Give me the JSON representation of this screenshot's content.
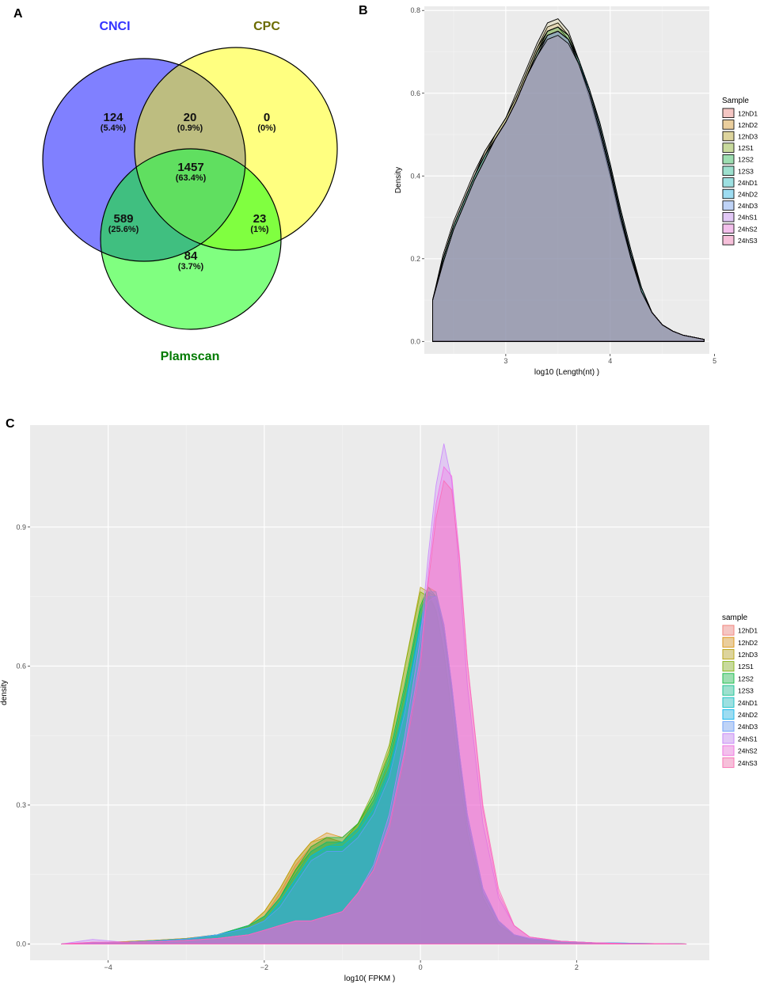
{
  "panels": {
    "a": "A",
    "b": "B",
    "c": "C"
  },
  "chart_data": [
    {
      "type": "venn",
      "sets": [
        {
          "name": "CNCI",
          "color": "#3333ff"
        },
        {
          "name": "CPC",
          "color": "#6b6b00"
        },
        {
          "name": "Plamscan",
          "color": "#007a00"
        }
      ],
      "regions": [
        {
          "sets": [
            "CNCI"
          ],
          "count": "124",
          "pct": "(5.4%)"
        },
        {
          "sets": [
            "CNCI",
            "CPC"
          ],
          "count": "20",
          "pct": "(0.9%)"
        },
        {
          "sets": [
            "CPC"
          ],
          "count": "0",
          "pct": "(0%)"
        },
        {
          "sets": [
            "CNCI",
            "CPC",
            "Plamscan"
          ],
          "count": "1457",
          "pct": "(63.4%)"
        },
        {
          "sets": [
            "CNCI",
            "Plamscan"
          ],
          "count": "589",
          "pct": "(25.6%)"
        },
        {
          "sets": [
            "CPC",
            "Plamscan"
          ],
          "count": "23",
          "pct": "(1%)"
        },
        {
          "sets": [
            "Plamscan"
          ],
          "count": "84",
          "pct": "(3.7%)"
        }
      ],
      "fill_colors": {
        "CNCI": "#8080ff",
        "CPC": "#ffff80",
        "Plamscan": "#80ff80"
      }
    },
    {
      "type": "area",
      "xlabel": "log10 (Length(nt) )",
      "ylabel": "Density",
      "xlim": [
        2.22,
        4.95
      ],
      "ylim": [
        -0.03,
        0.81
      ],
      "xticks": [
        3,
        4,
        5
      ],
      "yticks": [
        0.0,
        0.2,
        0.4,
        0.6,
        0.8
      ],
      "xtick_labels": [
        "3",
        "4",
        "5"
      ],
      "ytick_labels": [
        "0.0",
        "0.2",
        "0.4",
        "0.6",
        "0.8"
      ],
      "legend_title": "Sample",
      "legend_position": "right",
      "x": [
        2.3,
        2.4,
        2.5,
        2.6,
        2.7,
        2.8,
        2.9,
        3.0,
        3.1,
        3.2,
        3.3,
        3.4,
        3.5,
        3.6,
        3.7,
        3.8,
        3.9,
        4.0,
        4.1,
        4.2,
        4.3,
        4.4,
        4.5,
        4.6,
        4.7,
        4.8,
        4.9
      ],
      "series": [
        {
          "name": "12hD1",
          "color": "#F8766D",
          "values": [
            0.1,
            0.2,
            0.28,
            0.34,
            0.4,
            0.45,
            0.49,
            0.53,
            0.58,
            0.64,
            0.7,
            0.75,
            0.76,
            0.73,
            0.67,
            0.59,
            0.5,
            0.4,
            0.29,
            0.2,
            0.12,
            0.07,
            0.04,
            0.025,
            0.015,
            0.01,
            0.005
          ]
        },
        {
          "name": "12hD2",
          "color": "#DE8C00",
          "values": [
            0.1,
            0.21,
            0.29,
            0.35,
            0.41,
            0.46,
            0.5,
            0.54,
            0.59,
            0.65,
            0.71,
            0.76,
            0.77,
            0.74,
            0.68,
            0.6,
            0.5,
            0.4,
            0.29,
            0.2,
            0.12,
            0.07,
            0.04,
            0.025,
            0.015,
            0.01,
            0.005
          ]
        },
        {
          "name": "12hD3",
          "color": "#B79F00",
          "values": [
            0.1,
            0.2,
            0.28,
            0.34,
            0.4,
            0.46,
            0.5,
            0.54,
            0.6,
            0.66,
            0.72,
            0.77,
            0.78,
            0.75,
            0.68,
            0.6,
            0.51,
            0.41,
            0.3,
            0.2,
            0.12,
            0.07,
            0.04,
            0.025,
            0.015,
            0.01,
            0.005
          ]
        },
        {
          "name": "12S1",
          "color": "#7CAE00",
          "values": [
            0.1,
            0.2,
            0.28,
            0.34,
            0.4,
            0.45,
            0.5,
            0.54,
            0.59,
            0.65,
            0.71,
            0.75,
            0.76,
            0.74,
            0.68,
            0.6,
            0.51,
            0.41,
            0.3,
            0.21,
            0.13,
            0.07,
            0.04,
            0.025,
            0.015,
            0.01,
            0.005
          ]
        },
        {
          "name": "12S2",
          "color": "#00BA38",
          "values": [
            0.1,
            0.2,
            0.28,
            0.34,
            0.4,
            0.45,
            0.49,
            0.53,
            0.58,
            0.64,
            0.7,
            0.75,
            0.76,
            0.74,
            0.68,
            0.6,
            0.51,
            0.41,
            0.3,
            0.21,
            0.13,
            0.07,
            0.04,
            0.025,
            0.015,
            0.01,
            0.005
          ]
        },
        {
          "name": "12S3",
          "color": "#00C08B",
          "values": [
            0.1,
            0.2,
            0.28,
            0.34,
            0.4,
            0.45,
            0.49,
            0.53,
            0.58,
            0.64,
            0.7,
            0.75,
            0.76,
            0.74,
            0.68,
            0.61,
            0.52,
            0.42,
            0.31,
            0.21,
            0.13,
            0.07,
            0.04,
            0.025,
            0.015,
            0.01,
            0.005
          ]
        },
        {
          "name": "24hD1",
          "color": "#00BFC4",
          "values": [
            0.1,
            0.2,
            0.28,
            0.34,
            0.4,
            0.45,
            0.49,
            0.53,
            0.58,
            0.64,
            0.7,
            0.74,
            0.75,
            0.73,
            0.68,
            0.61,
            0.53,
            0.43,
            0.32,
            0.22,
            0.13,
            0.07,
            0.04,
            0.025,
            0.015,
            0.01,
            0.005
          ]
        },
        {
          "name": "24hD2",
          "color": "#00B4F0",
          "values": [
            0.1,
            0.2,
            0.28,
            0.34,
            0.4,
            0.45,
            0.49,
            0.53,
            0.58,
            0.64,
            0.69,
            0.74,
            0.75,
            0.73,
            0.68,
            0.61,
            0.53,
            0.43,
            0.32,
            0.22,
            0.13,
            0.07,
            0.04,
            0.025,
            0.015,
            0.01,
            0.005
          ]
        },
        {
          "name": "24hD3",
          "color": "#619CFF",
          "values": [
            0.1,
            0.2,
            0.28,
            0.34,
            0.4,
            0.45,
            0.49,
            0.53,
            0.58,
            0.64,
            0.69,
            0.74,
            0.75,
            0.73,
            0.68,
            0.61,
            0.52,
            0.42,
            0.31,
            0.21,
            0.13,
            0.07,
            0.04,
            0.025,
            0.015,
            0.01,
            0.005
          ]
        },
        {
          "name": "24hS1",
          "color": "#C77CFF",
          "values": [
            0.1,
            0.19,
            0.27,
            0.33,
            0.39,
            0.44,
            0.49,
            0.53,
            0.58,
            0.64,
            0.7,
            0.74,
            0.75,
            0.73,
            0.67,
            0.6,
            0.51,
            0.41,
            0.3,
            0.21,
            0.12,
            0.07,
            0.04,
            0.025,
            0.015,
            0.01,
            0.005
          ]
        },
        {
          "name": "24hS2",
          "color": "#F564E3",
          "values": [
            0.1,
            0.19,
            0.27,
            0.33,
            0.39,
            0.44,
            0.49,
            0.53,
            0.58,
            0.64,
            0.69,
            0.74,
            0.75,
            0.73,
            0.67,
            0.6,
            0.51,
            0.41,
            0.3,
            0.2,
            0.12,
            0.07,
            0.04,
            0.025,
            0.015,
            0.01,
            0.005
          ]
        },
        {
          "name": "24hS3",
          "color": "#FF64B0",
          "values": [
            0.1,
            0.19,
            0.27,
            0.33,
            0.39,
            0.44,
            0.49,
            0.53,
            0.58,
            0.64,
            0.69,
            0.73,
            0.74,
            0.72,
            0.67,
            0.6,
            0.51,
            0.41,
            0.3,
            0.2,
            0.12,
            0.07,
            0.04,
            0.025,
            0.015,
            0.01,
            0.005
          ]
        }
      ]
    },
    {
      "type": "area",
      "xlabel": "log10( FPKM )",
      "ylabel": "density",
      "xlim": [
        -5.0,
        3.7
      ],
      "ylim": [
        -0.035,
        1.12
      ],
      "xticks": [
        -4,
        -2,
        0,
        2
      ],
      "yticks": [
        0.0,
        0.3,
        0.6,
        0.9
      ],
      "xtick_labels": [
        "−4",
        "−2",
        "0",
        "2"
      ],
      "ytick_labels": [
        "0.0",
        "0.3",
        "0.6",
        "0.9"
      ],
      "legend_title": "sample",
      "legend_position": "right",
      "x": [
        -4.6,
        -4.2,
        -3.8,
        -3.4,
        -3.0,
        -2.6,
        -2.2,
        -2.0,
        -1.8,
        -1.6,
        -1.4,
        -1.2,
        -1.0,
        -0.8,
        -0.6,
        -0.4,
        -0.2,
        0.0,
        0.1,
        0.2,
        0.3,
        0.4,
        0.5,
        0.6,
        0.8,
        1.0,
        1.2,
        1.4,
        1.8,
        2.2,
        2.6,
        3.0,
        3.4
      ],
      "series": [
        {
          "name": "12hD1",
          "color": "#F8766D",
          "values": [
            0.0,
            0.002,
            0.005,
            0.008,
            0.012,
            0.02,
            0.04,
            0.06,
            0.11,
            0.17,
            0.21,
            0.23,
            0.22,
            0.25,
            0.3,
            0.38,
            0.52,
            0.7,
            0.76,
            0.75,
            0.68,
            0.55,
            0.4,
            0.27,
            0.12,
            0.05,
            0.02,
            0.01,
            0.004,
            0.002,
            0.001,
            0.001,
            0.0
          ]
        },
        {
          "name": "12hD2",
          "color": "#DE8C00",
          "values": [
            0.0,
            0.002,
            0.005,
            0.008,
            0.012,
            0.02,
            0.04,
            0.07,
            0.12,
            0.18,
            0.22,
            0.24,
            0.23,
            0.26,
            0.31,
            0.39,
            0.54,
            0.72,
            0.77,
            0.76,
            0.68,
            0.55,
            0.4,
            0.26,
            0.11,
            0.05,
            0.02,
            0.01,
            0.004,
            0.002,
            0.001,
            0.001,
            0.0
          ]
        },
        {
          "name": "12hD3",
          "color": "#B79F00",
          "values": [
            0.0,
            0.002,
            0.005,
            0.008,
            0.012,
            0.02,
            0.04,
            0.07,
            0.12,
            0.18,
            0.22,
            0.23,
            0.22,
            0.26,
            0.32,
            0.42,
            0.6,
            0.77,
            0.76,
            0.72,
            0.63,
            0.5,
            0.36,
            0.24,
            0.1,
            0.04,
            0.02,
            0.01,
            0.004,
            0.002,
            0.001,
            0.001,
            0.0
          ]
        },
        {
          "name": "12S1",
          "color": "#7CAE00",
          "values": [
            0.0,
            0.002,
            0.004,
            0.007,
            0.011,
            0.02,
            0.04,
            0.06,
            0.1,
            0.16,
            0.2,
            0.22,
            0.22,
            0.26,
            0.33,
            0.43,
            0.6,
            0.76,
            0.75,
            0.72,
            0.63,
            0.5,
            0.36,
            0.24,
            0.1,
            0.04,
            0.02,
            0.01,
            0.004,
            0.002,
            0.001,
            0.001,
            0.0
          ]
        },
        {
          "name": "12S2",
          "color": "#00BA38",
          "values": [
            0.0,
            0.002,
            0.004,
            0.007,
            0.011,
            0.02,
            0.04,
            0.06,
            0.1,
            0.16,
            0.21,
            0.23,
            0.23,
            0.26,
            0.32,
            0.41,
            0.56,
            0.73,
            0.77,
            0.75,
            0.67,
            0.54,
            0.39,
            0.26,
            0.11,
            0.05,
            0.02,
            0.01,
            0.004,
            0.002,
            0.001,
            0.001,
            0.0
          ]
        },
        {
          "name": "12S3",
          "color": "#00C08B",
          "values": [
            0.0,
            0.002,
            0.004,
            0.007,
            0.011,
            0.02,
            0.04,
            0.06,
            0.1,
            0.15,
            0.2,
            0.22,
            0.22,
            0.25,
            0.31,
            0.4,
            0.55,
            0.72,
            0.76,
            0.75,
            0.67,
            0.54,
            0.39,
            0.26,
            0.11,
            0.05,
            0.02,
            0.01,
            0.004,
            0.002,
            0.001,
            0.001,
            0.0
          ]
        },
        {
          "name": "24hD1",
          "color": "#00BFC4",
          "values": [
            0.0,
            0.002,
            0.004,
            0.007,
            0.011,
            0.02,
            0.035,
            0.05,
            0.09,
            0.14,
            0.19,
            0.21,
            0.22,
            0.25,
            0.3,
            0.38,
            0.52,
            0.7,
            0.76,
            0.76,
            0.69,
            0.56,
            0.41,
            0.28,
            0.12,
            0.05,
            0.02,
            0.012,
            0.006,
            0.003,
            0.002,
            0.001,
            0.0
          ]
        },
        {
          "name": "24hD2",
          "color": "#00B4F0",
          "values": [
            0.0,
            0.002,
            0.004,
            0.007,
            0.011,
            0.02,
            0.035,
            0.05,
            0.09,
            0.14,
            0.19,
            0.21,
            0.21,
            0.24,
            0.29,
            0.37,
            0.51,
            0.69,
            0.75,
            0.75,
            0.69,
            0.56,
            0.41,
            0.28,
            0.12,
            0.05,
            0.02,
            0.012,
            0.006,
            0.003,
            0.002,
            0.001,
            0.0
          ]
        },
        {
          "name": "24hD3",
          "color": "#619CFF",
          "values": [
            0.0,
            0.002,
            0.004,
            0.007,
            0.011,
            0.02,
            0.035,
            0.05,
            0.08,
            0.13,
            0.18,
            0.2,
            0.2,
            0.23,
            0.28,
            0.36,
            0.5,
            0.68,
            0.74,
            0.75,
            0.69,
            0.56,
            0.41,
            0.28,
            0.12,
            0.05,
            0.02,
            0.012,
            0.006,
            0.003,
            0.002,
            0.001,
            0.0
          ]
        },
        {
          "name": "24hS1",
          "color": "#C77CFF",
          "values": [
            0.0,
            0.01,
            0.004,
            0.005,
            0.008,
            0.012,
            0.02,
            0.03,
            0.04,
            0.05,
            0.05,
            0.06,
            0.07,
            0.11,
            0.17,
            0.28,
            0.45,
            0.66,
            0.84,
            0.99,
            1.08,
            1.0,
            0.8,
            0.56,
            0.26,
            0.1,
            0.04,
            0.015,
            0.006,
            0.003,
            0.001,
            0.001,
            0.0
          ]
        },
        {
          "name": "24hS2",
          "color": "#F564E3",
          "values": [
            0.0,
            0.004,
            0.004,
            0.005,
            0.008,
            0.012,
            0.02,
            0.03,
            0.04,
            0.05,
            0.05,
            0.06,
            0.07,
            0.11,
            0.16,
            0.26,
            0.42,
            0.62,
            0.8,
            0.95,
            1.03,
            1.01,
            0.84,
            0.61,
            0.29,
            0.11,
            0.04,
            0.015,
            0.006,
            0.003,
            0.001,
            0.001,
            0.0
          ]
        },
        {
          "name": "24hS3",
          "color": "#FF64B0",
          "values": [
            0.0,
            0.004,
            0.004,
            0.005,
            0.008,
            0.012,
            0.02,
            0.03,
            0.04,
            0.05,
            0.05,
            0.06,
            0.07,
            0.11,
            0.16,
            0.25,
            0.41,
            0.6,
            0.78,
            0.92,
            1.0,
            0.98,
            0.83,
            0.61,
            0.3,
            0.12,
            0.04,
            0.015,
            0.006,
            0.003,
            0.001,
            0.001,
            0.0
          ]
        }
      ]
    }
  ]
}
